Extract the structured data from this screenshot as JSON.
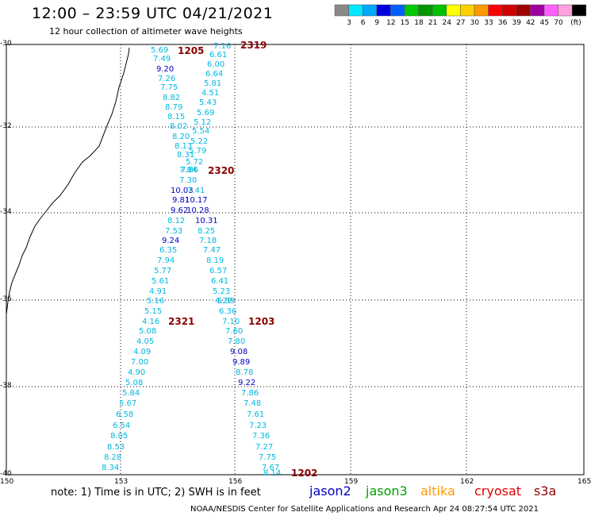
{
  "title": "12:00 – 23:59 UTC 04/21/2021",
  "subtitle": "12 hour collection of altimeter wave heights",
  "legend": {
    "colors": [
      "#888888",
      "#00e8ff",
      "#00a8ff",
      "#0000e0",
      "#0060ff",
      "#00c800",
      "#009600",
      "#00c000",
      "#ffff00",
      "#ffd000",
      "#ff9a00",
      "#ff0000",
      "#d00000",
      "#a00000",
      "#a000a0",
      "#ff60ff",
      "#ffa0e0",
      "#000000"
    ],
    "labels": [
      "3",
      "6",
      "9",
      "12",
      "15",
      "18",
      "21",
      "24",
      "27",
      "30",
      "33",
      "36",
      "39",
      "42",
      "45",
      "70"
    ],
    "unit": "(ft)"
  },
  "axes": {
    "lat_labels": [
      "-30",
      "-32",
      "-34",
      "-36",
      "-38",
      "-40"
    ],
    "lon_labels": [
      "150",
      "153",
      "156",
      "159",
      "162",
      "165"
    ]
  },
  "track_left": {
    "values": [
      "5.69",
      "7.49",
      "9.20",
      "7.26",
      "7.75",
      "8.82",
      "8.79",
      "8.15",
      "8.02",
      "8.20",
      "8.13",
      "8.31",
      "7.84",
      "7.30",
      "10.03",
      "9.81",
      "9.62",
      "8.12",
      "7.53",
      "9.24",
      "6.35",
      "7.94",
      "5.77",
      "5.61",
      "4.91",
      "5.16",
      "5.15",
      "4.16",
      "5.08",
      "4.05",
      "4.09",
      "7.00",
      "4.90",
      "5.08",
      "5.84",
      "5.67",
      "6.58",
      "6.54",
      "8.05",
      "8.53",
      "8.28",
      "8.34"
    ],
    "times": [
      "1205",
      "2321"
    ]
  },
  "track_right": {
    "values": [
      "7.16",
      "6.61",
      "6.00",
      "6.64",
      "5.81",
      "4.51",
      "5.43",
      "5.69",
      "5.12",
      "5.54",
      "5.22",
      "5.79",
      "5.72",
      "7.86",
      "7.41",
      "10.17",
      "10.28",
      "10.31",
      "8.25",
      "7.18",
      "7.47",
      "8.19",
      "6.57",
      "6.41",
      "5.23",
      "4.27",
      "5.39",
      "6.36",
      "7.10",
      "7.60",
      "7.80",
      "9.08",
      "9.89",
      "8.78",
      "9.22",
      "7.86",
      "7.48",
      "7.61",
      "7.23",
      "7.36",
      "7.27",
      "7.75",
      "7.67",
      "8.14"
    ],
    "times": [
      "2319",
      "2320",
      "1203",
      "1202"
    ]
  },
  "note": "note:  1) Time is in UTC;  2) SWH is in feet",
  "satellites": [
    {
      "name": "jason2",
      "color": "#0000c8"
    },
    {
      "name": "jason3",
      "color": "#00a000"
    },
    {
      "name": "altika",
      "color": "#ff9a00"
    },
    {
      "name": "cryosat",
      "color": "#e00000"
    },
    {
      "name": "s3a",
      "color": "#900000"
    }
  ],
  "footer": "NOAA/NESDIS Center for Satellite Applications and Research    Apr 24 08:27:54 UTC 2021"
}
